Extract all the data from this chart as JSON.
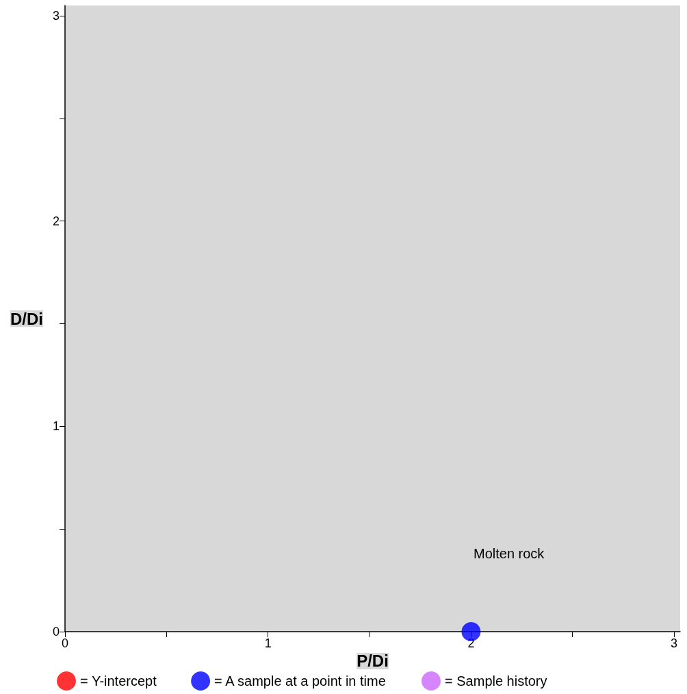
{
  "chart_data": {
    "type": "scatter",
    "xlabel": "P/Di",
    "ylabel": "D/Di",
    "xlim": [
      0,
      3.03
    ],
    "ylim": [
      0,
      3.05
    ],
    "xticks": [
      0,
      {
        "value": 0.5,
        "label": null
      },
      1,
      {
        "value": 1.5,
        "label": null
      },
      2,
      {
        "value": 2.5,
        "label": null
      },
      3
    ],
    "yticks": [
      0,
      {
        "value": 0.5,
        "label": null
      },
      1,
      {
        "value": 1.5,
        "label": null
      },
      2,
      {
        "value": 2.5,
        "label": null
      },
      3
    ],
    "series": [
      {
        "name": "= Y-intercept",
        "color": "#ff0000"
      },
      {
        "name": "= A sample at a point in time",
        "color": "#0000ff",
        "x": [
          2
        ],
        "values": [
          0
        ]
      },
      {
        "name": "= Sample history",
        "color": "#cc66ff"
      }
    ],
    "annotations": [
      "Molten rock"
    ],
    "marker": "circle",
    "grid": false,
    "legend": "bottom"
  }
}
